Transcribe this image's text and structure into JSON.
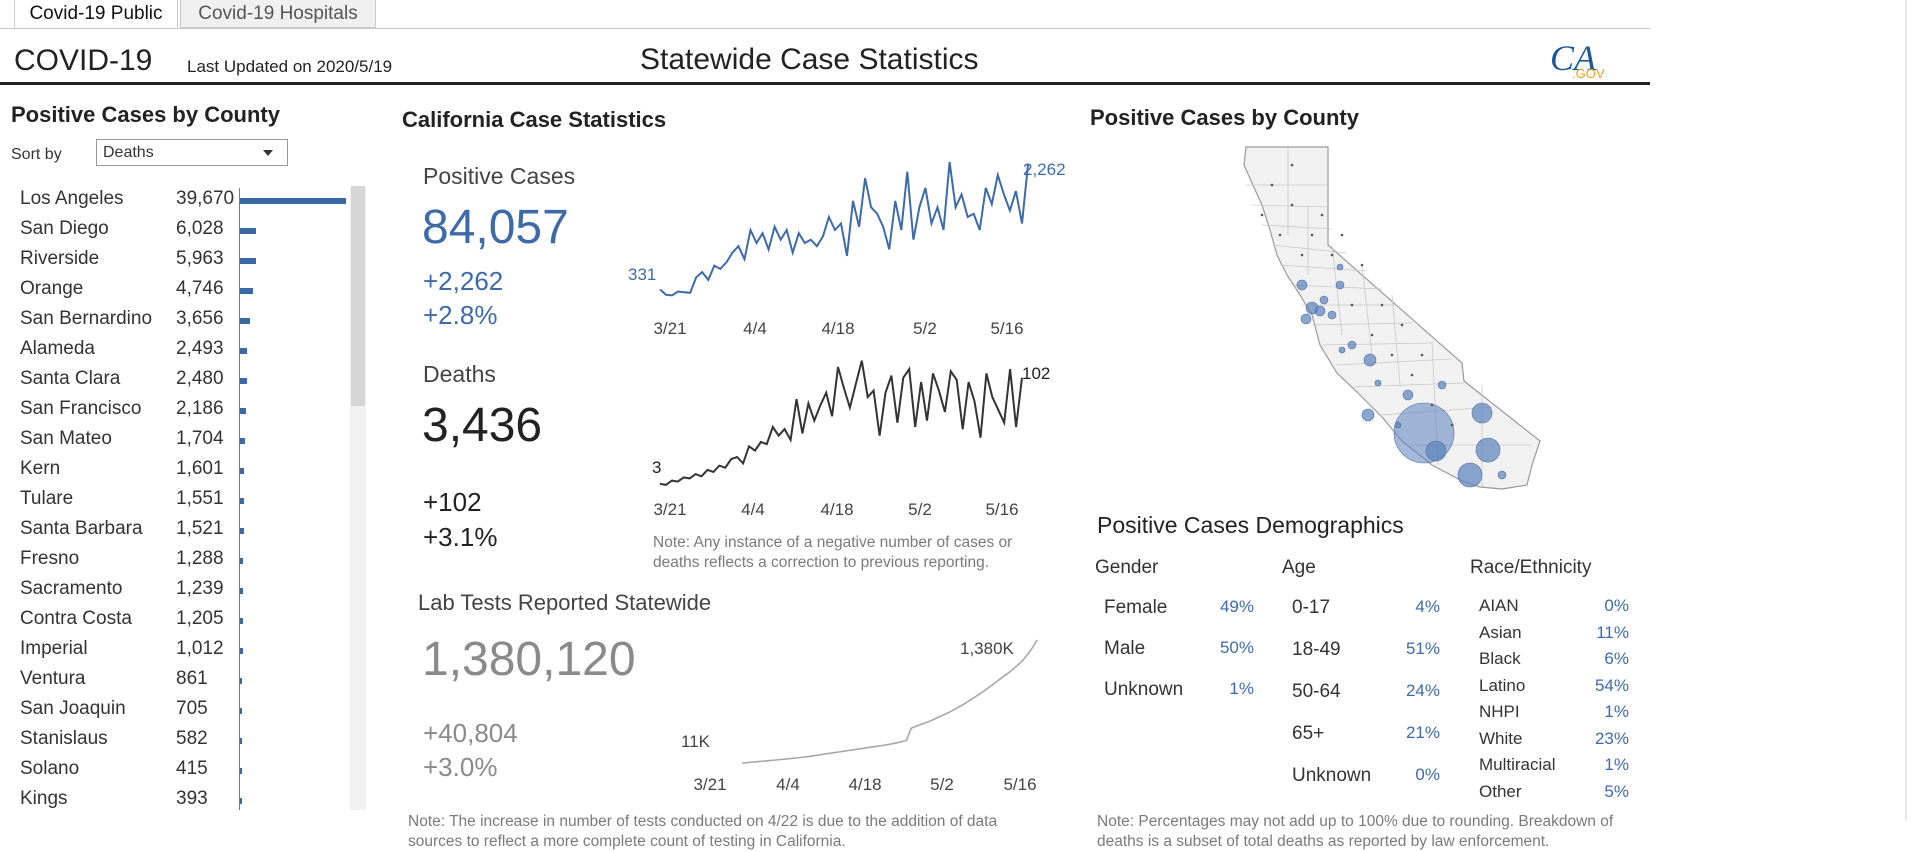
{
  "tabs": [
    {
      "label": "Covid-19 Public",
      "active": true
    },
    {
      "label": "Covid-19 Hospitals",
      "active": false
    }
  ],
  "header": {
    "title": "COVID-19",
    "updated": "Last Updated on 2020/5/19",
    "center_title": "Statewide Case Statistics",
    "logo_text": "CA.GOV"
  },
  "left_panel": {
    "title": "Positive Cases by County",
    "sort_label": "Sort by",
    "sort_value": "Deaths",
    "counties": [
      {
        "name": "Los Angeles",
        "value": "39,670",
        "n": 39670
      },
      {
        "name": "San Diego",
        "value": "6,028",
        "n": 6028
      },
      {
        "name": "Riverside",
        "value": "5,963",
        "n": 5963
      },
      {
        "name": "Orange",
        "value": "4,746",
        "n": 4746
      },
      {
        "name": "San Bernardino",
        "value": "3,656",
        "n": 3656
      },
      {
        "name": "Alameda",
        "value": "2,493",
        "n": 2493
      },
      {
        "name": "Santa Clara",
        "value": "2,480",
        "n": 2480
      },
      {
        "name": "San Francisco",
        "value": "2,186",
        "n": 2186
      },
      {
        "name": "San Mateo",
        "value": "1,704",
        "n": 1704
      },
      {
        "name": "Kern",
        "value": "1,601",
        "n": 1601
      },
      {
        "name": "Tulare",
        "value": "1,551",
        "n": 1551
      },
      {
        "name": "Santa Barbara",
        "value": "1,521",
        "n": 1521
      },
      {
        "name": "Fresno",
        "value": "1,288",
        "n": 1288
      },
      {
        "name": "Sacramento",
        "value": "1,239",
        "n": 1239
      },
      {
        "name": "Contra Costa",
        "value": "1,205",
        "n": 1205
      },
      {
        "name": "Imperial",
        "value": "1,012",
        "n": 1012
      },
      {
        "name": "Ventura",
        "value": "861",
        "n": 861
      },
      {
        "name": "San Joaquin",
        "value": "705",
        "n": 705
      },
      {
        "name": "Stanislaus",
        "value": "582",
        "n": 582
      },
      {
        "name": "Solano",
        "value": "415",
        "n": 415
      },
      {
        "name": "Kings",
        "value": "393",
        "n": 393
      }
    ]
  },
  "middle": {
    "title": "California Case Statistics",
    "positive": {
      "label": "Positive Cases",
      "total": "84,057",
      "change": "+2,262",
      "pct": "+2.8%",
      "first_label": "331",
      "last_label": "2,262",
      "ticks": [
        "3/21",
        "4/4",
        "4/18",
        "5/2",
        "5/16"
      ],
      "color": "#3e6ba8"
    },
    "deaths": {
      "label": "Deaths",
      "total": "3,436",
      "change": "+102",
      "pct": "+3.1%",
      "first_label": "3",
      "last_label": "102",
      "ticks": [
        "3/21",
        "4/4",
        "4/18",
        "5/2",
        "5/16"
      ],
      "color": "#333333"
    },
    "note": "Note: Any instance of a negative number of cases or deaths reflects a correction to previous reporting.",
    "lab": {
      "label": "Lab Tests Reported Statewide",
      "total": "1,380,120",
      "change": "+40,804",
      "pct": "+3.0%",
      "first_label": "11K",
      "last_label": "1,380K",
      "ticks": [
        "3/21",
        "4/4",
        "4/18",
        "5/2",
        "5/16"
      ],
      "color": "#a8a8a8"
    },
    "lab_note": "Note: The increase in number of tests conducted on 4/22 is due to the addition of data sources to reflect a more complete count of testing in California."
  },
  "right": {
    "map_title": "Positive Cases by County",
    "demo_title": "Positive Cases Demographics",
    "gender": {
      "head": "Gender",
      "rows": [
        {
          "label": "Female",
          "pct": "49%"
        },
        {
          "label": "Male",
          "pct": "50%"
        },
        {
          "label": "Unknown",
          "pct": "1%"
        }
      ]
    },
    "age": {
      "head": "Age",
      "rows": [
        {
          "label": "0-17",
          "pct": "4%"
        },
        {
          "label": "18-49",
          "pct": "51%"
        },
        {
          "label": "50-64",
          "pct": "24%"
        },
        {
          "label": "65+",
          "pct": "21%"
        },
        {
          "label": "Unknown",
          "pct": "0%"
        }
      ]
    },
    "race": {
      "head": "Race/Ethnicity",
      "rows": [
        {
          "label": "AIAN",
          "pct": "0%"
        },
        {
          "label": "Asian",
          "pct": "11%"
        },
        {
          "label": "Black",
          "pct": "6%"
        },
        {
          "label": "Latino",
          "pct": "54%"
        },
        {
          "label": "NHPI",
          "pct": "1%"
        },
        {
          "label": "White",
          "pct": "23%"
        },
        {
          "label": "Multiracial",
          "pct": "1%"
        },
        {
          "label": "Other",
          "pct": "5%"
        }
      ]
    },
    "note": "Note: Percentages may not add up to 100% due to rounding. Breakdown of deaths is a subset of total deaths as reported by law enforcement."
  },
  "chart_data": [
    {
      "type": "line",
      "title": "Positive Cases",
      "x": [
        "3/19",
        "3/20",
        "3/21",
        "3/22",
        "3/23",
        "3/24",
        "3/25",
        "3/26",
        "3/27",
        "3/28",
        "3/29",
        "3/30",
        "3/31",
        "4/1",
        "4/2",
        "4/3",
        "4/4",
        "4/5",
        "4/6",
        "4/7",
        "4/8",
        "4/9",
        "4/10",
        "4/11",
        "4/12",
        "4/13",
        "4/14",
        "4/15",
        "4/16",
        "4/17",
        "4/18",
        "4/19",
        "4/20",
        "4/21",
        "4/22",
        "4/23",
        "4/24",
        "4/25",
        "4/26",
        "4/27",
        "4/28",
        "4/29",
        "4/30",
        "5/1",
        "5/2",
        "5/3",
        "5/4",
        "5/5",
        "5/6",
        "5/7",
        "5/8",
        "5/9",
        "5/10",
        "5/11",
        "5/12",
        "5/13",
        "5/14",
        "5/15",
        "5/16",
        "5/17",
        "5/18",
        "5/19"
      ],
      "series": [
        {
          "values": [
            331,
            250,
            240,
            300,
            290,
            280,
            520,
            600,
            480,
            700,
            650,
            750,
            900,
            1000,
            800,
            1250,
            1050,
            1200,
            950,
            1300,
            1100,
            1250,
            900,
            1200,
            1050,
            1100,
            1000,
            1150,
            1450,
            1250,
            1350,
            850,
            1700,
            1300,
            2050,
            1600,
            1500,
            1300,
            950,
            1700,
            1250,
            2150,
            1100,
            1600,
            1900,
            1350,
            1600,
            1250,
            2300,
            1600,
            1800,
            1450,
            1500,
            1250,
            1900,
            1650,
            2100,
            1800,
            1550,
            1850,
            1350,
            2262
          ]
        }
      ],
      "xticks": [
        "3/21",
        "4/4",
        "4/18",
        "5/2",
        "5/16"
      ]
    },
    {
      "type": "line",
      "title": "Deaths",
      "x": [
        "3/19",
        "3/20",
        "3/21",
        "3/22",
        "3/23",
        "3/24",
        "3/25",
        "3/26",
        "3/27",
        "3/28",
        "3/29",
        "3/30",
        "3/31",
        "4/1",
        "4/2",
        "4/3",
        "4/4",
        "4/5",
        "4/6",
        "4/7",
        "4/8",
        "4/9",
        "4/10",
        "4/11",
        "4/12",
        "4/13",
        "4/14",
        "4/15",
        "4/16",
        "4/17",
        "4/18",
        "4/19",
        "4/20",
        "4/21",
        "4/22",
        "4/23",
        "4/24",
        "4/25",
        "4/26",
        "4/27",
        "4/28",
        "4/29",
        "4/30",
        "5/1",
        "5/2",
        "5/3",
        "5/4",
        "5/5",
        "5/6",
        "5/7",
        "5/8",
        "5/9",
        "5/10",
        "5/11",
        "5/12",
        "5/13",
        "5/14",
        "5/15",
        "5/16",
        "5/17",
        "5/18",
        "5/19"
      ],
      "series": [
        {
          "values": [
            3,
            2,
            6,
            5,
            9,
            8,
            12,
            10,
            16,
            14,
            20,
            18,
            26,
            28,
            22,
            38,
            34,
            42,
            40,
            56,
            48,
            54,
            44,
            82,
            50,
            78,
            62,
            76,
            88,
            66,
            112,
            92,
            74,
            96,
            118,
            84,
            90,
            48,
            88,
            104,
            60,
            102,
            110,
            56,
            98,
            62,
            106,
            90,
            70,
            108,
            100,
            54,
            98,
            80,
            46,
            106,
            84,
            72,
            60,
            110,
            56,
            102
          ]
        }
      ],
      "xticks": [
        "3/21",
        "4/4",
        "4/18",
        "5/2",
        "5/16"
      ]
    },
    {
      "type": "line",
      "title": "Lab Tests Reported Statewide",
      "x": [
        "3/19",
        "3/20",
        "3/21",
        "3/22",
        "3/23",
        "3/24",
        "3/25",
        "3/26",
        "3/27",
        "3/28",
        "3/29",
        "3/30",
        "3/31",
        "4/1",
        "4/2",
        "4/3",
        "4/4",
        "4/5",
        "4/6",
        "4/7",
        "4/8",
        "4/9",
        "4/10",
        "4/11",
        "4/12",
        "4/13",
        "4/14",
        "4/15",
        "4/16",
        "4/17",
        "4/18",
        "4/19",
        "4/20",
        "4/21",
        "4/22",
        "4/23",
        "4/24",
        "4/25",
        "4/26",
        "4/27",
        "4/28",
        "4/29",
        "4/30",
        "5/1",
        "5/2",
        "5/3",
        "5/4",
        "5/5",
        "5/6",
        "5/7",
        "5/8",
        "5/9",
        "5/10",
        "5/11",
        "5/12",
        "5/13",
        "5/14",
        "5/15",
        "5/16",
        "5/17",
        "5/18",
        "5/19"
      ],
      "series": [
        {
          "values": [
            11,
            15,
            20,
            25,
            30,
            35,
            40,
            45,
            50,
            55,
            60,
            66,
            72,
            78,
            85,
            92,
            100,
            110,
            118,
            126,
            134,
            142,
            150,
            158,
            166,
            174,
            182,
            190,
            198,
            206,
            215,
            225,
            236,
            248,
            260,
            400,
            420,
            440,
            460,
            480,
            505,
            530,
            555,
            580,
            610,
            640,
            670,
            705,
            740,
            775,
            810,
            850,
            890,
            930,
            970,
            1010,
            1055,
            1100,
            1150,
            1215,
            1290,
            1380
          ]
        }
      ],
      "xticks": [
        "3/21",
        "4/4",
        "4/18",
        "5/2",
        "5/16"
      ]
    }
  ]
}
